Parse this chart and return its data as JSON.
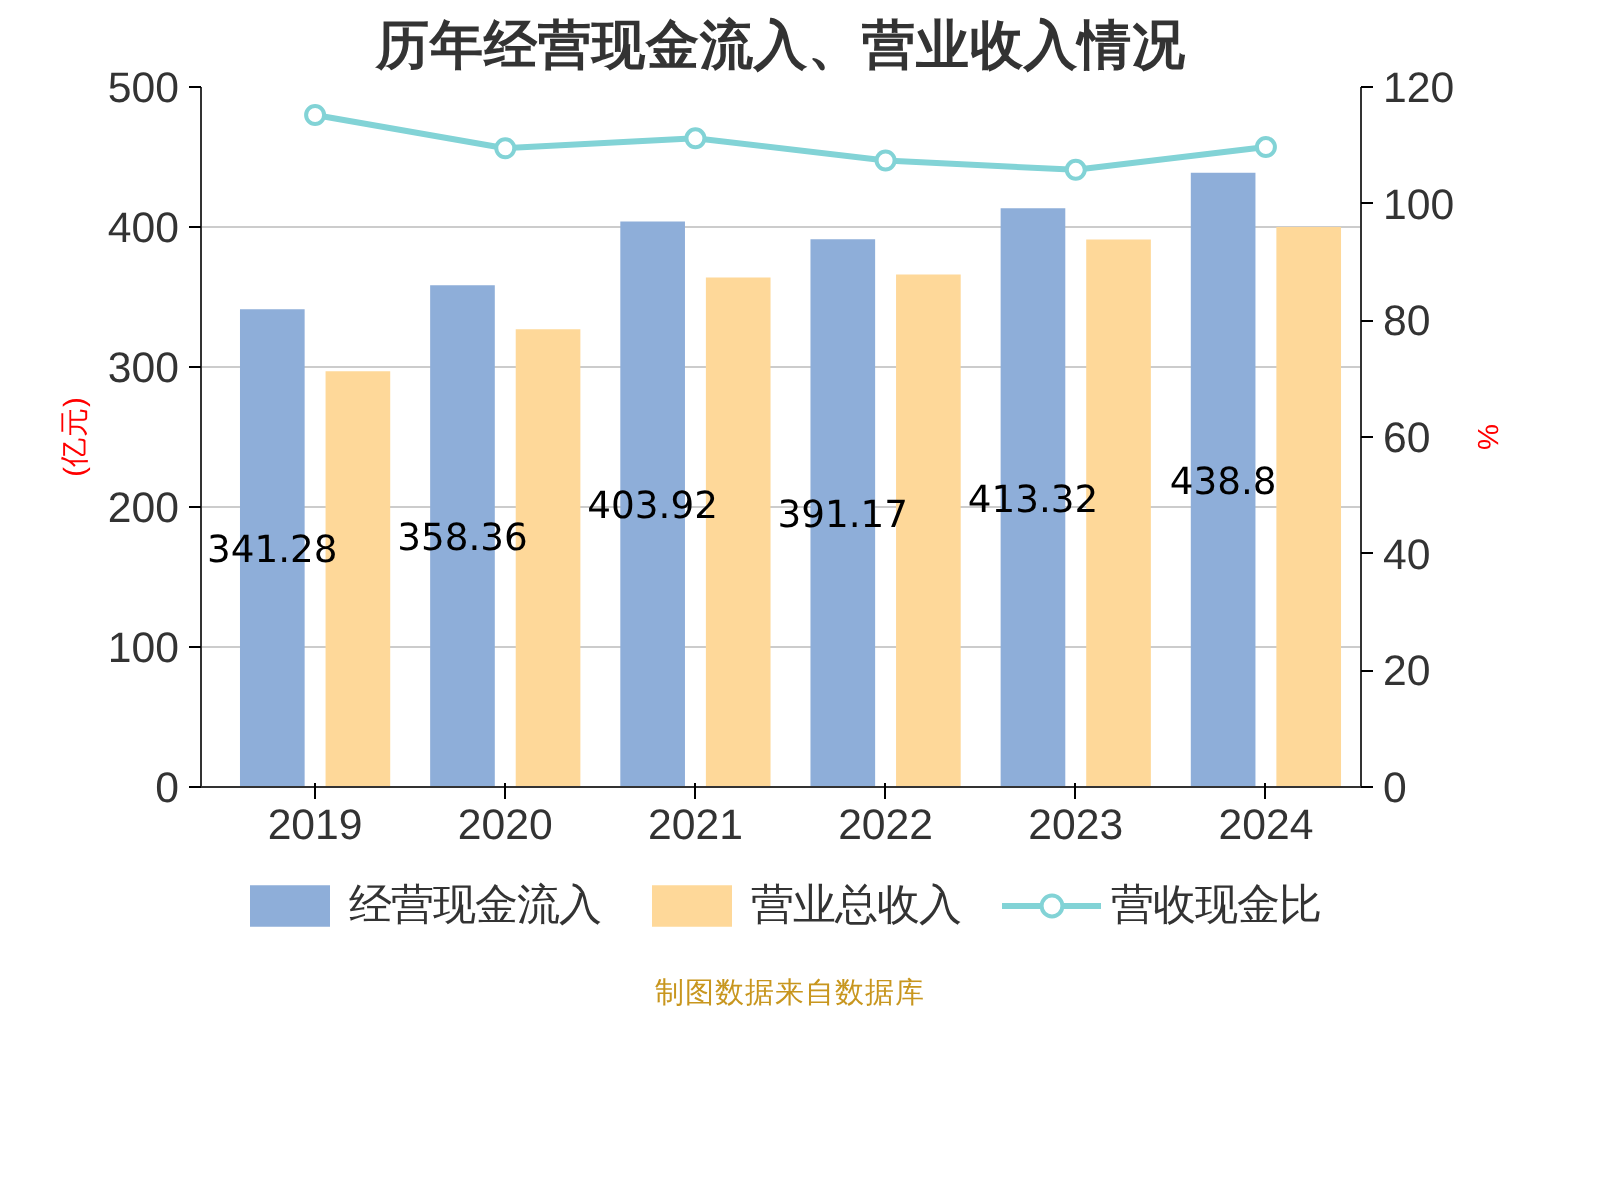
{
  "chart_data": {
    "type": "bar",
    "title": "历年经营现金流入、营业收入情况",
    "categories": [
      "2019",
      "2020",
      "2021",
      "2022",
      "2023",
      "2024"
    ],
    "ylabel": "(亿元)",
    "y2label": "%",
    "ylim": [
      0,
      500
    ],
    "yticks": [
      0,
      100,
      200,
      300,
      400,
      500
    ],
    "y2lim": [
      0,
      120
    ],
    "y2ticks": [
      0,
      20,
      40,
      60,
      80,
      100,
      120
    ],
    "grid": "y",
    "legend": "bottom",
    "series": [
      {
        "name": "经营现金流入",
        "color": "#8eaed9",
        "values": [
          341.28,
          358.36,
          403.92,
          391.17,
          413.32,
          438.8
        ],
        "value_labels": [
          "341.28",
          "358.36",
          "403.92",
          "391.17",
          "413.32",
          "438.8"
        ]
      },
      {
        "name": "营业总收入",
        "color": "#fed899",
        "values": [
          297,
          327,
          364,
          366,
          391,
          400
        ]
      },
      {
        "name": "营收现金比",
        "color": "#82d3d6",
        "type": "line",
        "axis": "y2",
        "marker": "circle",
        "values": [
          115.2,
          109.5,
          111.2,
          107.4,
          105.8,
          109.7
        ]
      }
    ],
    "annotations": [
      "制图数据来自数据库"
    ]
  }
}
